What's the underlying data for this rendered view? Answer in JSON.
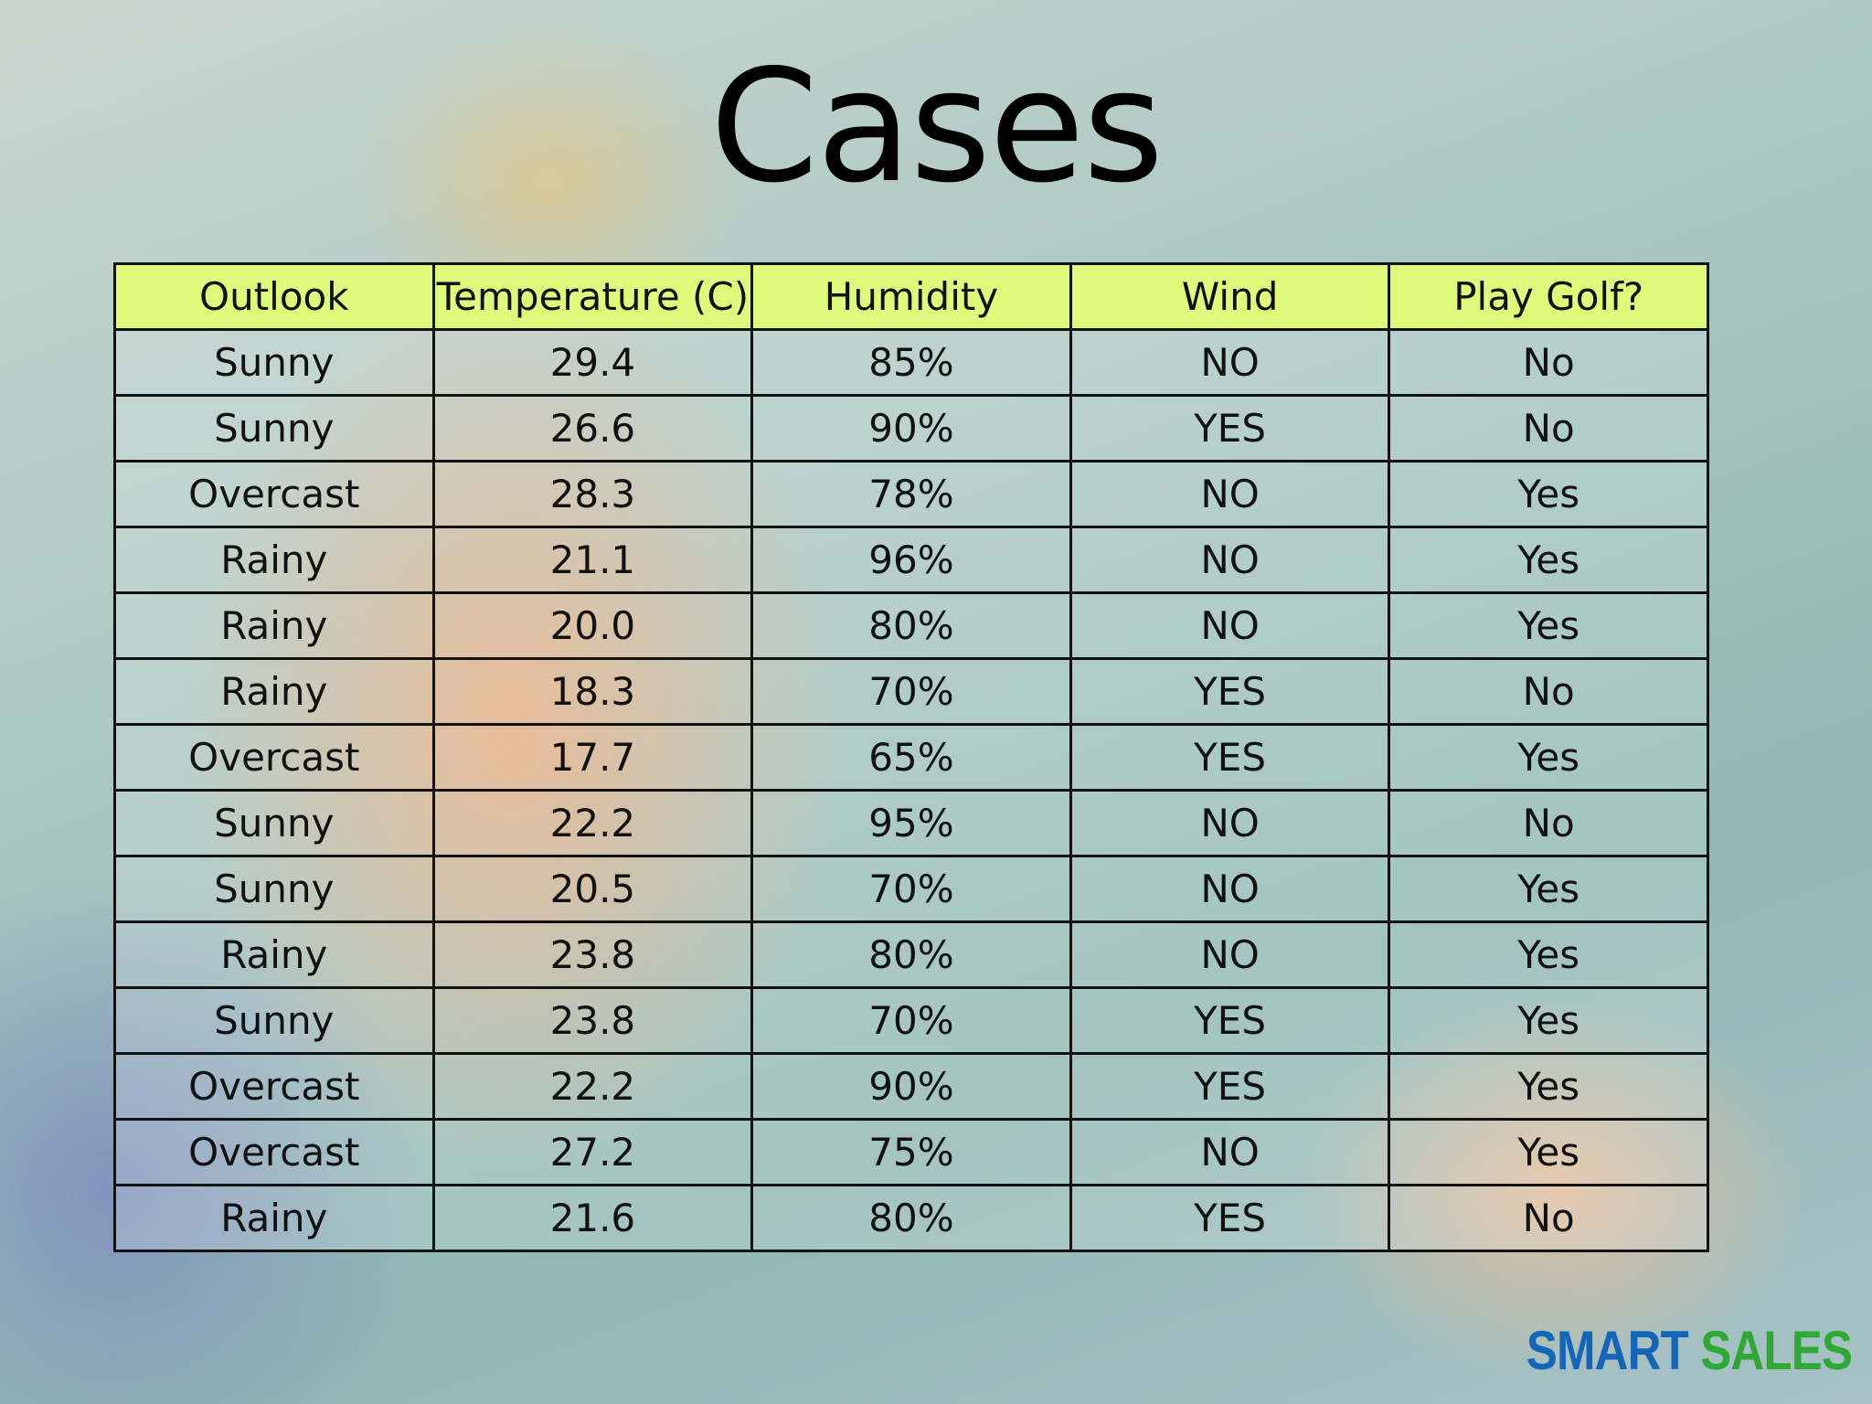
{
  "header": {
    "title": "Cases"
  },
  "table": {
    "columns": [
      "Outlook",
      "Temperature (C)",
      "Humidity",
      "Wind",
      "Play Golf?"
    ],
    "rows": [
      [
        "Sunny",
        "29.4",
        "85%",
        "NO",
        "No"
      ],
      [
        "Sunny",
        "26.6",
        "90%",
        "YES",
        "No"
      ],
      [
        "Overcast",
        "28.3",
        "78%",
        "NO",
        "Yes"
      ],
      [
        "Rainy",
        "21.1",
        "96%",
        "NO",
        "Yes"
      ],
      [
        "Rainy",
        "20.0",
        "80%",
        "NO",
        "Yes"
      ],
      [
        "Rainy",
        "18.3",
        "70%",
        "YES",
        "No"
      ],
      [
        "Overcast",
        "17.7",
        "65%",
        "YES",
        "Yes"
      ],
      [
        "Sunny",
        "22.2",
        "95%",
        "NO",
        "No"
      ],
      [
        "Sunny",
        "20.5",
        "70%",
        "NO",
        "Yes"
      ],
      [
        "Rainy",
        "23.8",
        "80%",
        "NO",
        "Yes"
      ],
      [
        "Sunny",
        "23.8",
        "70%",
        "YES",
        "Yes"
      ],
      [
        "Overcast",
        "22.2",
        "90%",
        "YES",
        "Yes"
      ],
      [
        "Overcast",
        "27.2",
        "75%",
        "NO",
        "Yes"
      ],
      [
        "Rainy",
        "21.6",
        "80%",
        "YES",
        "No"
      ]
    ]
  },
  "logo": {
    "first": "SMART",
    "second": "SALES"
  }
}
